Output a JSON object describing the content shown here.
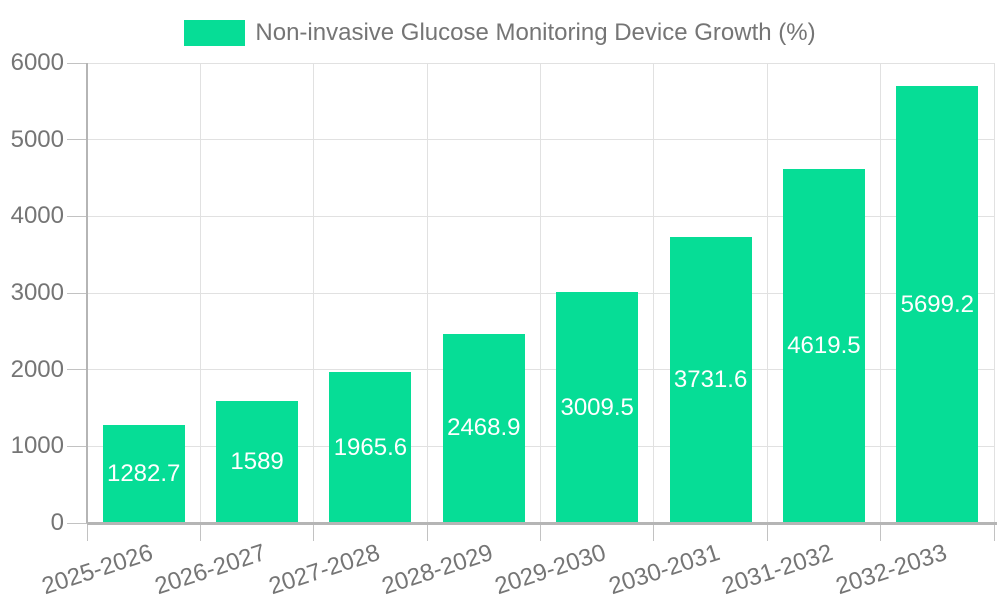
{
  "legend": {
    "label": "Non-invasive Glucose Monitoring Device Growth (%)"
  },
  "chart_data": {
    "type": "bar",
    "title": "Non-invasive Glucose Monitoring Device Growth (%)",
    "categories": [
      "2025-2026",
      "2026-2027",
      "2027-2028",
      "2028-2029",
      "2029-2030",
      "2030-2031",
      "2031-2032",
      "2032-2033"
    ],
    "values": [
      1282.7,
      1589,
      1965.6,
      2468.9,
      3009.5,
      3731.6,
      4619.5,
      5699.2
    ],
    "bar_value_labels": [
      "1282.7",
      "1589",
      "1965.6",
      "2468.9",
      "3009.5",
      "3731.6",
      "4619.5",
      "5699.2"
    ],
    "xlabel": "",
    "ylabel": "",
    "ylim": [
      0,
      6000
    ],
    "ytick_interval": 1000,
    "ytick_labels": [
      "0",
      "1000",
      "2000",
      "3000",
      "4000",
      "5000",
      "6000"
    ],
    "grid": true,
    "legend_position": "top-center",
    "bar_label_position": "inside-middle",
    "x_label_rotation_deg": -18,
    "colors": {
      "bar": "#06dd96",
      "bar_label": "#ffffff",
      "axis_text": "#757575",
      "grid_line": "#e1e1e1",
      "tick_line": "#c2c2c2",
      "axis_line": "#b5b5b5",
      "background": "#ffffff"
    }
  }
}
